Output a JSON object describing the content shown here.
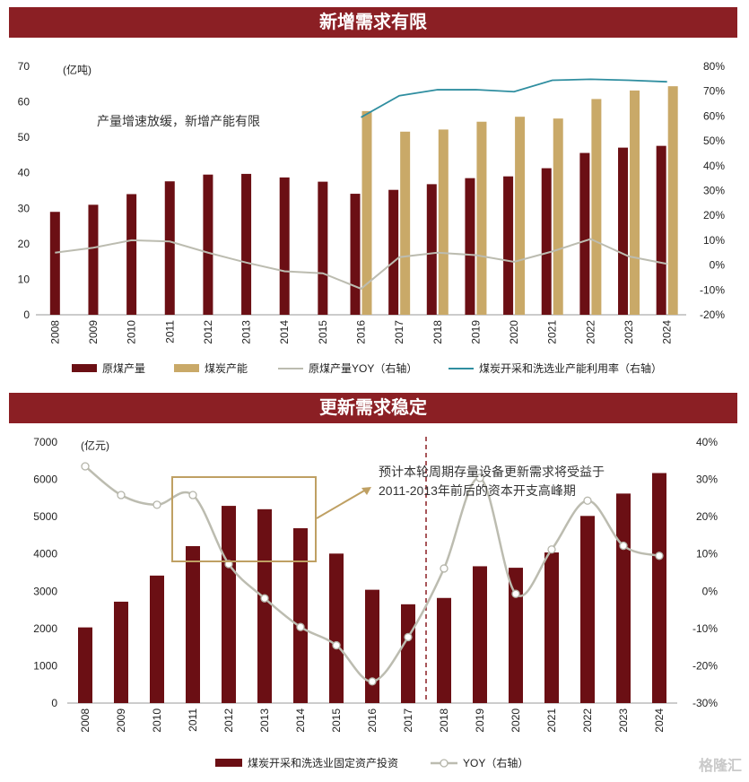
{
  "banner1": "新增需求有限",
  "banner2": "更新需求稳定",
  "watermark": "格隆汇",
  "chart_data": [
    {
      "type": "bar",
      "title": "新增需求有限",
      "categories": [
        "2008",
        "2009",
        "2010",
        "2011",
        "2012",
        "2013",
        "2014",
        "2015",
        "2016",
        "2017",
        "2018",
        "2019",
        "2020",
        "2021",
        "2022",
        "2023",
        "2024"
      ],
      "unit_left": "(亿吨)",
      "ylim_left": [
        0,
        70
      ],
      "yticks_left": [
        "0",
        "10",
        "20",
        "30",
        "40",
        "50",
        "60",
        "70"
      ],
      "ylim_right": [
        -20,
        80
      ],
      "yticks_right": [
        "-20%",
        "-10%",
        "0%",
        "10%",
        "20%",
        "30%",
        "40%",
        "50%",
        "60%",
        "70%",
        "80%"
      ],
      "annotation": "产量增速放缓，新增产能有限",
      "series": [
        {
          "name": "原煤产量",
          "kind": "bar",
          "color": "#6b0f14",
          "axis": "left",
          "values": [
            29,
            31,
            34,
            37.6,
            39.5,
            39.7,
            38.7,
            37.5,
            34.1,
            35.2,
            36.8,
            38.5,
            39.0,
            41.3,
            45.6,
            47.1,
            47.6
          ]
        },
        {
          "name": "煤炭产能",
          "kind": "bar",
          "color": "#c9a968",
          "axis": "left",
          "values": [
            null,
            null,
            null,
            null,
            null,
            null,
            null,
            null,
            57.4,
            51.6,
            52.2,
            54.4,
            55.8,
            55.3,
            60.8,
            63.2,
            64.4
          ]
        },
        {
          "name": "原煤产量YOY（右轴）",
          "kind": "line",
          "color": "#bcbcb0",
          "axis": "right",
          "values": [
            5,
            7,
            10,
            9.5,
            5,
            1,
            -2.5,
            -3.3,
            -9.5,
            3.2,
            5,
            4,
            1.3,
            5.5,
            10.5,
            3.5,
            0.5
          ]
        },
        {
          "name": "煤炭开采和洗选业产能利用率（右轴）",
          "kind": "line",
          "color": "#2f8ea0",
          "axis": "right",
          "values": [
            null,
            null,
            null,
            null,
            null,
            null,
            null,
            null,
            59.5,
            68.2,
            70.6,
            70.6,
            69.8,
            74.4,
            74.8,
            74.4,
            73.8
          ]
        }
      ]
    },
    {
      "type": "bar",
      "title": "更新需求稳定",
      "categories": [
        "2008",
        "2009",
        "2010",
        "2011",
        "2012",
        "2013",
        "2014",
        "2015",
        "2016",
        "2017",
        "2018",
        "2019",
        "2020",
        "2021",
        "2022",
        "2023",
        "2024"
      ],
      "unit_left": "(亿元)",
      "ylim_left": [
        0,
        7000
      ],
      "yticks_left": [
        "0",
        "1000",
        "2000",
        "3000",
        "4000",
        "5000",
        "6000",
        "7000"
      ],
      "ylim_right": [
        -30,
        40
      ],
      "yticks_right": [
        "-30%",
        "-20%",
        "-10%",
        "0%",
        "10%",
        "20%",
        "30%",
        "40%"
      ],
      "annotation": [
        "预计本轮周期存量设备更新需求将受益于",
        "2011-2013年前后的资本开支高峰期"
      ],
      "series": [
        {
          "name": "煤炭开采和洗选业固定资产投资",
          "kind": "bar",
          "color": "#6b0f14",
          "axis": "left",
          "values": [
            2030,
            2720,
            3420,
            4210,
            5290,
            5200,
            4690,
            4010,
            3040,
            2650,
            2820,
            3670,
            3630,
            4040,
            5020,
            5620,
            6170
          ]
        },
        {
          "name": "YOY（右轴）",
          "kind": "line",
          "color": "#bcbcb0",
          "axis": "right",
          "values": [
            33.5,
            25.8,
            23.2,
            25.8,
            7.3,
            -1.9,
            -9.6,
            -14.5,
            -24.2,
            -12.3,
            6.1,
            30.4,
            -0.7,
            11.2,
            24.3,
            12.2,
            9.5
          ]
        }
      ]
    }
  ]
}
